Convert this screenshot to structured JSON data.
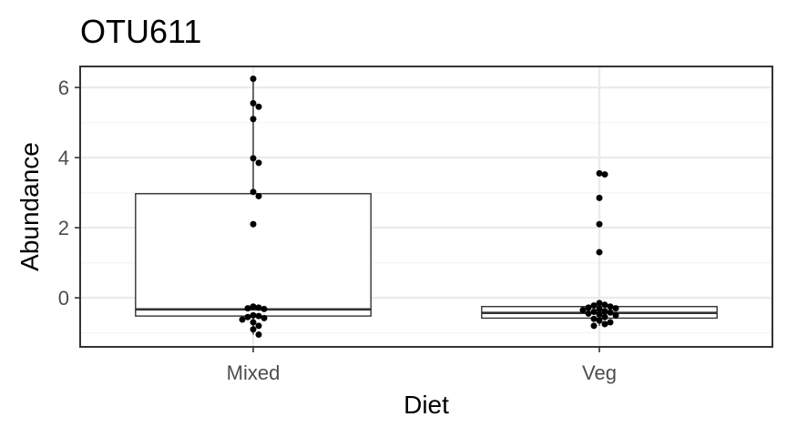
{
  "chart_data": {
    "type": "box",
    "title": "OTU611",
    "xlabel": "Diet",
    "ylabel": "Abundance",
    "categories": [
      "Mixed",
      "Veg"
    ],
    "ylim": [
      -1.4,
      6.6
    ],
    "yticks": [
      0,
      2,
      4,
      6
    ],
    "grid": true,
    "boxes": [
      {
        "category": "Mixed",
        "q1": -0.52,
        "median": -0.33,
        "q3": 2.97,
        "whisker_low": -1.05,
        "whisker_high": 6.25
      },
      {
        "category": "Veg",
        "q1": -0.58,
        "median": -0.43,
        "q3": -0.25,
        "whisker_low": -0.8,
        "whisker_high": -0.1
      }
    ],
    "points": [
      {
        "category": "Mixed",
        "values": [
          6.25,
          5.55,
          5.45,
          5.1,
          3.98,
          3.85,
          3.02,
          2.9,
          2.1,
          -0.25,
          -0.28,
          -0.3,
          -0.32,
          -0.5,
          -0.52,
          -0.55,
          -0.58,
          -0.62,
          -0.7,
          -0.8,
          -0.9,
          -1.05
        ]
      },
      {
        "category": "Veg",
        "values": [
          3.55,
          3.52,
          2.85,
          2.1,
          1.3,
          -0.15,
          -0.2,
          -0.22,
          -0.25,
          -0.28,
          -0.3,
          -0.32,
          -0.35,
          -0.38,
          -0.4,
          -0.42,
          -0.45,
          -0.48,
          -0.5,
          -0.55,
          -0.6,
          -0.65,
          -0.7,
          -0.75,
          -0.8
        ]
      }
    ],
    "colors": {
      "point": "#000000",
      "box_stroke": "#333333",
      "grid_major": "#ebebeb",
      "grid_minor": "#f5f5f5",
      "panel_border": "#333333"
    }
  }
}
